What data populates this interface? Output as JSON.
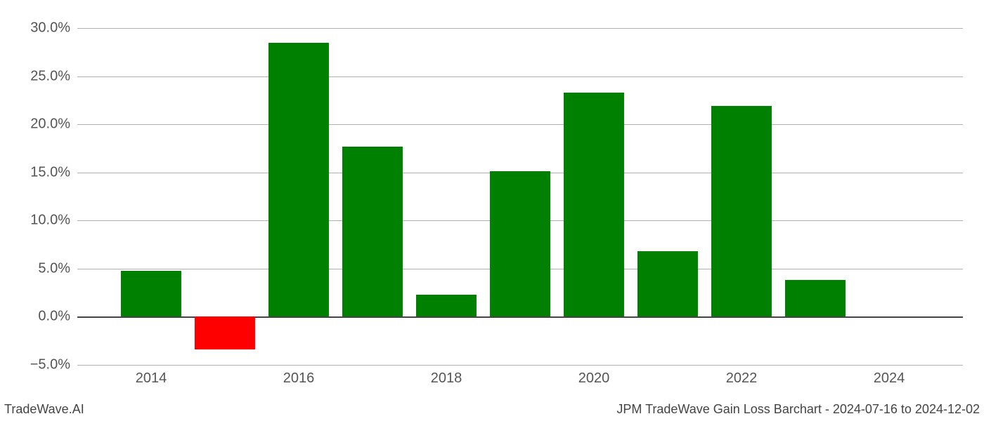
{
  "chart": {
    "type": "bar",
    "background_color": "#ffffff",
    "grid_color": "#b0b0b0",
    "zero_line_color": "#444444",
    "label_color": "#555555",
    "font_family": "Arial",
    "tick_fontsize": 20,
    "footer_fontsize": 18,
    "ylim_min": -5.0,
    "ylim_max": 30.0,
    "ytick_step": 5.0,
    "yticks": [
      -5.0,
      0.0,
      5.0,
      10.0,
      15.0,
      20.0,
      25.0,
      30.0
    ],
    "ytick_labels": [
      "−5.0%",
      "0.0%",
      "5.0%",
      "10.0%",
      "15.0%",
      "20.0%",
      "25.0%",
      "30.0%"
    ],
    "x_domain_min": 2013,
    "x_domain_max": 2025,
    "xticks": [
      2014,
      2016,
      2018,
      2020,
      2022,
      2024
    ],
    "xtick_labels": [
      "2014",
      "2016",
      "2018",
      "2020",
      "2022",
      "2024"
    ],
    "bar_width_years": 0.82,
    "positive_color": "#008000",
    "negative_color": "#ff0000",
    "years": [
      2014,
      2015,
      2016,
      2017,
      2018,
      2019,
      2020,
      2021,
      2022,
      2023
    ],
    "values": [
      4.8,
      -3.4,
      28.5,
      17.7,
      2.3,
      15.1,
      23.3,
      6.8,
      21.9,
      3.8
    ]
  },
  "footer": {
    "left": "TradeWave.AI",
    "right": "JPM TradeWave Gain Loss Barchart - 2024-07-16 to 2024-12-02"
  }
}
